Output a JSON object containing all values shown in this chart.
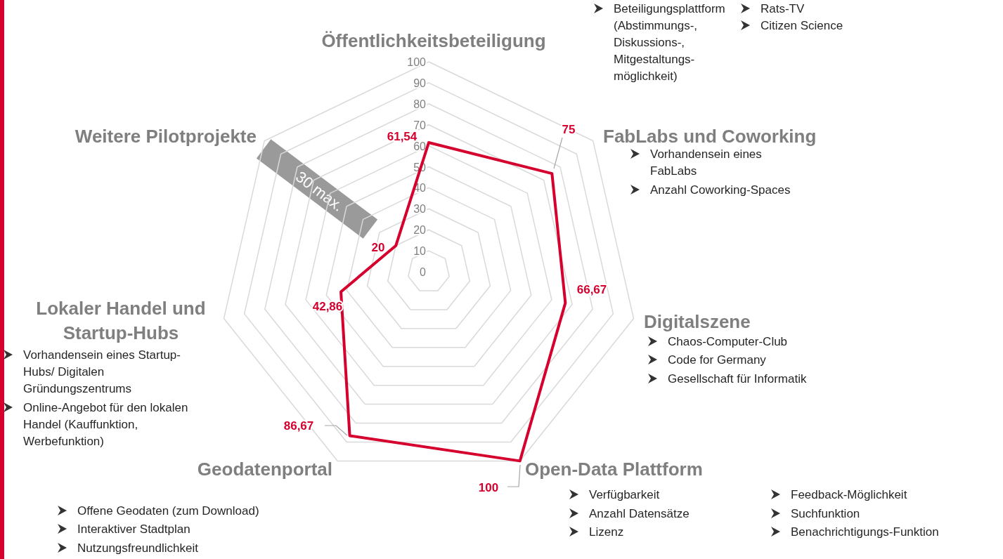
{
  "chart_data": {
    "type": "radar",
    "categories": [
      "Öffentlichkeitsbeteiligung",
      "FabLabs und Coworking",
      "Digitalszene",
      "Open-Data Plattform",
      "Geodatenportal",
      "Lokaler Handel und\nStartup-Hubs",
      "Weitere Pilotprojekte"
    ],
    "series": [
      {
        "color": "#d5002d",
        "values": [
          61.54,
          75,
          66.67,
          100,
          86.67,
          42.86,
          20
        ],
        "value_labels": [
          "61,54",
          "75",
          "66,67",
          "100",
          "86,67",
          "42,86",
          "20"
        ]
      }
    ],
    "ylim": [
      0,
      100
    ],
    "yticks": [
      0,
      10,
      20,
      30,
      40,
      50,
      60,
      70,
      80,
      90,
      100
    ],
    "grid": true,
    "annotations": [
      "30 max.",
      "Beteiligungsplattform\n(Abstimmungs-,\nDiskussions-,\nMitgestaltungs-\nmöglichkeit)",
      "Rats-TV",
      "Citizen Science",
      "Vorhandensein eines\nFabLabs",
      "Anzahl Coworking-Spaces",
      "Chaos-Computer-Club",
      "Code for Germany",
      "Gesellschaft für Informatik",
      "Verfügbarkeit",
      "Anzahl Datensätze",
      "Lizenz",
      "Feedback-Möglichkeit",
      "Suchfunktion",
      "Benachrichtigungs-Funktion",
      "Offene Geodaten (zum Download)",
      "Interaktiver Stadtplan",
      "Nutzungsfreundlichkeit",
      "Vorhandensein eines Startup-\nHubs/ Digitalen\nGründungszentrums",
      "Online-Angebot für den lokalen\nHandel (Kauffunktion,\nWerbefunktion)"
    ]
  }
}
